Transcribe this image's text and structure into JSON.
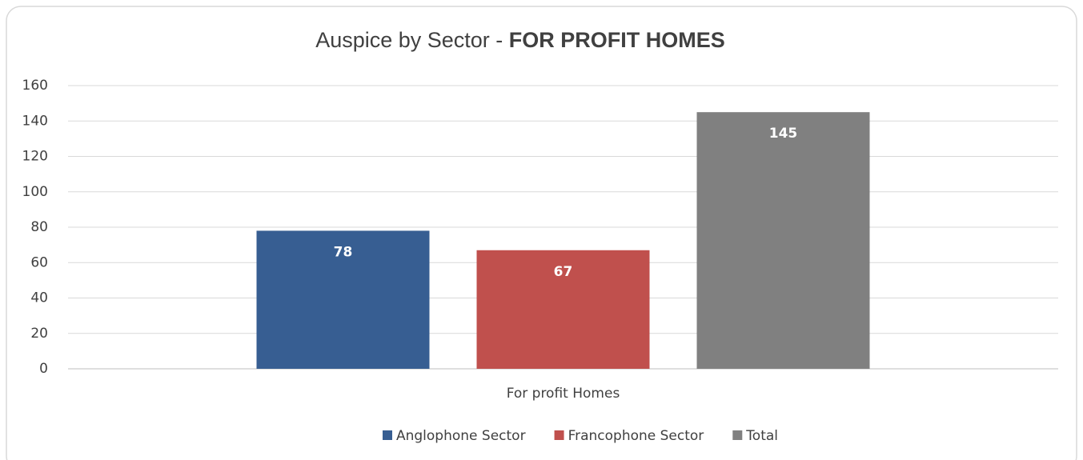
{
  "chart_data": {
    "type": "bar",
    "title": "Auspice by Sector - ",
    "title_emphasis": "FOR PROFIT HOMES",
    "categories": [
      "For profit Homes"
    ],
    "series": [
      {
        "name": "Anglophone Sector",
        "color": "#375e92",
        "values": [
          78
        ]
      },
      {
        "name": "Francophone Sector",
        "color": "#c0504d",
        "values": [
          67
        ]
      },
      {
        "name": "Total",
        "color": "#808080",
        "values": [
          145
        ]
      }
    ],
    "ylim": [
      0,
      160
    ],
    "yticks": [
      0,
      20,
      40,
      60,
      80,
      100,
      120,
      140,
      160
    ],
    "grid": true,
    "legend": "bottom"
  }
}
